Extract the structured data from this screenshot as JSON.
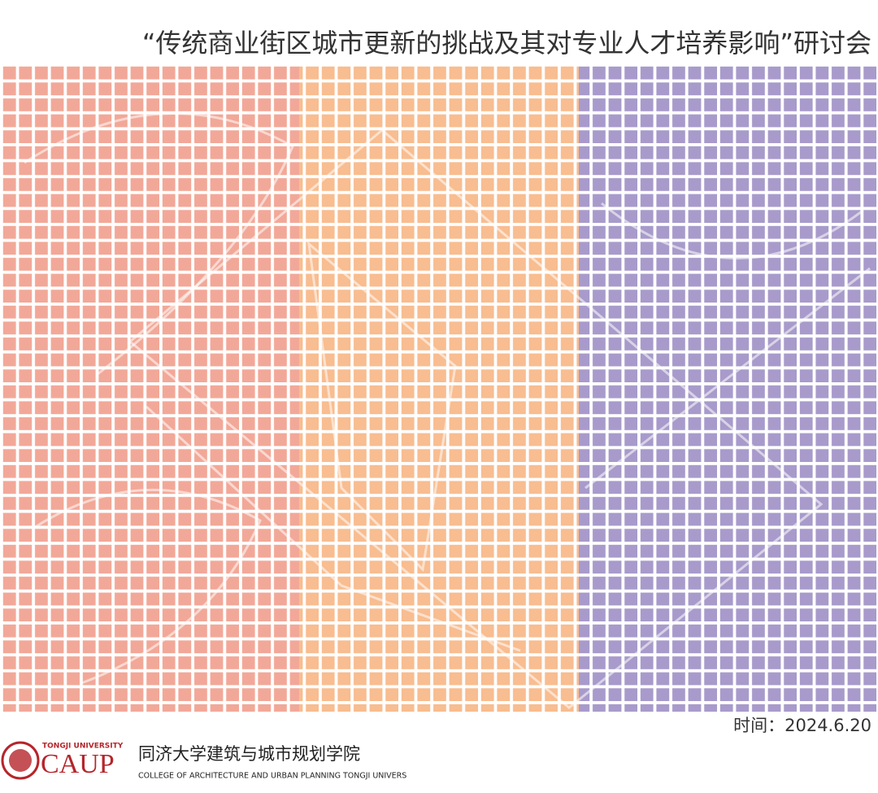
{
  "header": {
    "title": "“传统商业街区城市更新的挑战及其对专业人才培养影响”研讨会"
  },
  "footer": {
    "date": "时间：2024.6.20",
    "logo": {
      "university": "TONGJI UNIVERSITY",
      "abbr": "CAUP",
      "name_cn": "同济大学建筑与城市规划学院",
      "name_en": "COLLEGE OF ARCHITECTURE AND URBAN PLANNING TONGJI UNIVERS"
    }
  }
}
